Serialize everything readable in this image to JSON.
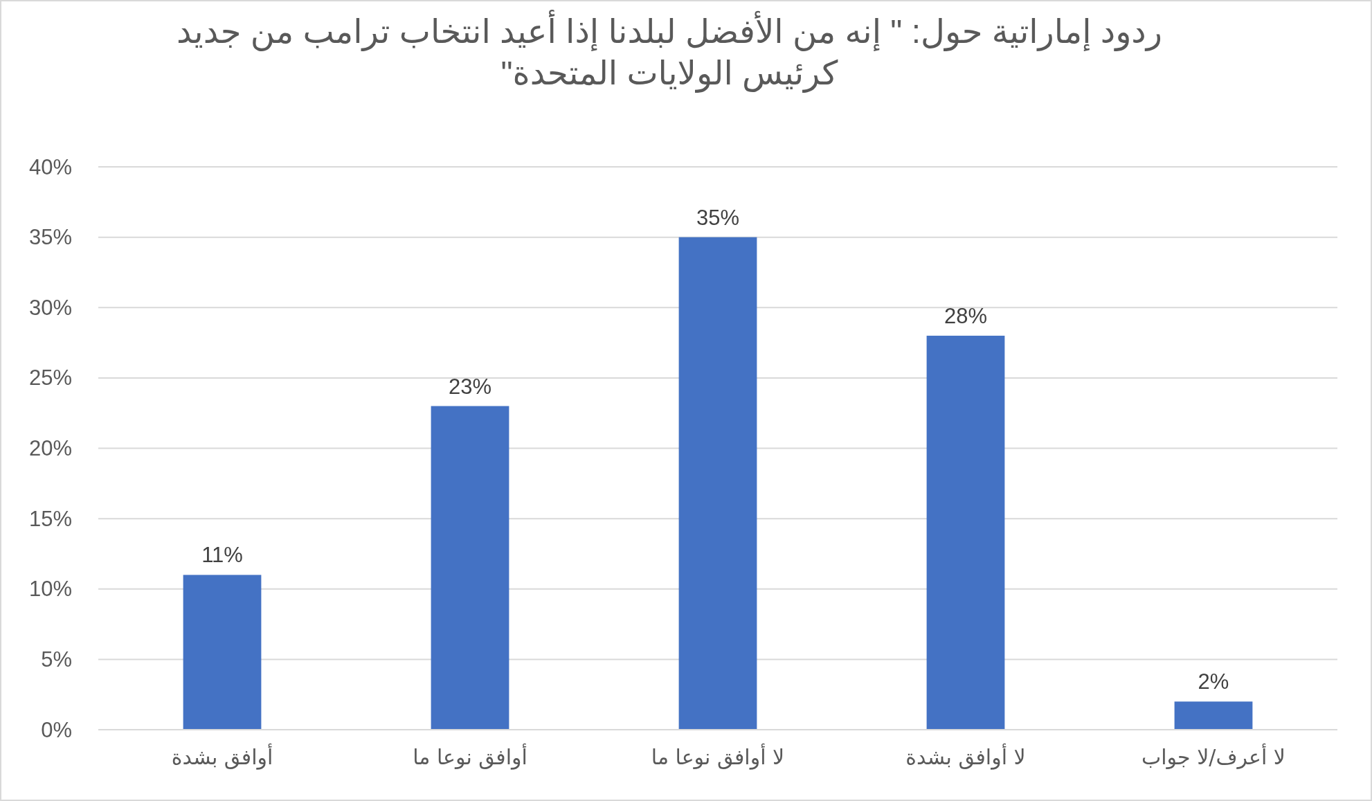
{
  "chart_data": {
    "type": "bar",
    "title": "ردود إماراتية حول: \" إنه من الأفضل لبلدنا إذا أعيد انتخاب ترامب من جديد كرئيس الولايات المتحدة\"",
    "categories": [
      "أوافق بشدة",
      "أوافق نوعا ما",
      "لا أوافق نوعا ما",
      "لا أوافق بشدة",
      "لا أعرف/لا جواب"
    ],
    "values": [
      11,
      23,
      35,
      28,
      2
    ],
    "value_labels": [
      "11%",
      "23%",
      "35%",
      "28%",
      "2%"
    ],
    "color": "#4472c4",
    "ylim": [
      0,
      40
    ],
    "yticks": [
      {
        "value": 0,
        "label": "0%"
      },
      {
        "value": 5,
        "label": "5%"
      },
      {
        "value": 10,
        "label": "10%"
      },
      {
        "value": 15,
        "label": "15%"
      },
      {
        "value": 20,
        "label": "20%"
      },
      {
        "value": 25,
        "label": "25%"
      },
      {
        "value": 30,
        "label": "30%"
      },
      {
        "value": 35,
        "label": "35%"
      },
      {
        "value": 40,
        "label": "40%"
      }
    ],
    "grid": "y"
  }
}
